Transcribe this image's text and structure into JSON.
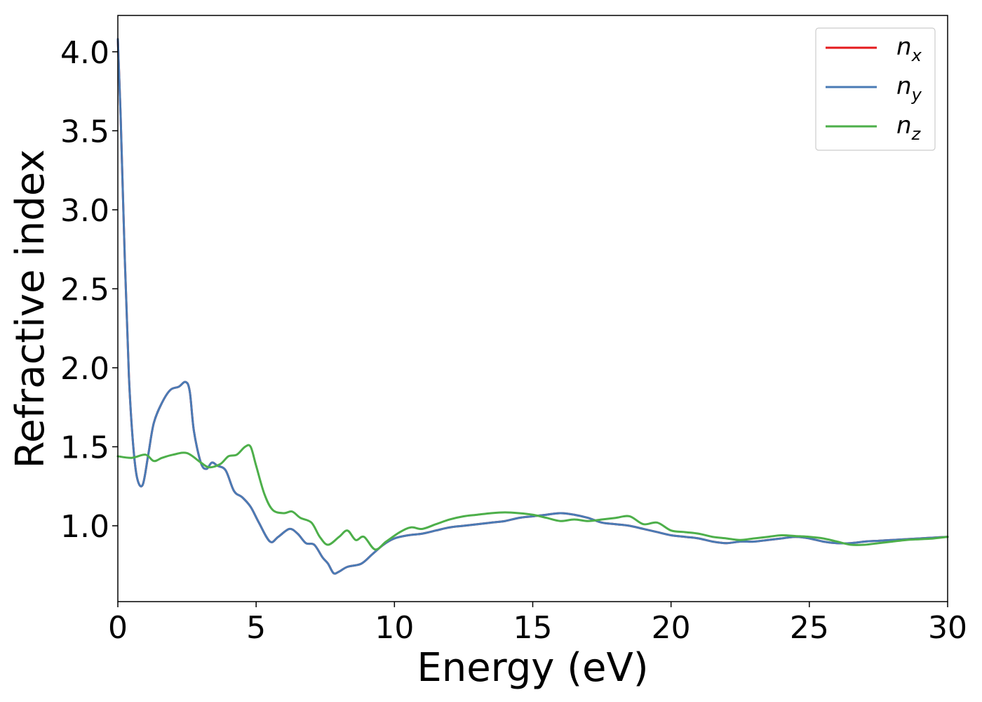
{
  "chart_data": {
    "type": "line",
    "xlabel": "Energy (eV)",
    "ylabel": "Refractive index",
    "xlim": [
      0,
      30
    ],
    "ylim": [
      0.52,
      4.23
    ],
    "xticks": [
      0,
      5,
      10,
      15,
      20,
      25,
      30
    ],
    "xtick_labels": [
      "0",
      "5",
      "10",
      "15",
      "20",
      "25",
      "30"
    ],
    "yticks": [
      1.0,
      1.5,
      2.0,
      2.5,
      3.0,
      3.5,
      4.0
    ],
    "ytick_labels": [
      "1.0",
      "1.5",
      "2.0",
      "2.5",
      "3.0",
      "3.5",
      "4.0"
    ],
    "grid": false,
    "legend_position": "top-right",
    "series": [
      {
        "name": "n_x",
        "label_base": "n",
        "label_sub": "x",
        "color": "#e41a1c",
        "x": [
          0,
          0.1,
          0.25,
          0.4,
          0.55,
          0.7,
          0.9,
          1.1,
          1.3,
          1.6,
          1.9,
          2.2,
          2.45,
          2.6,
          2.75,
          3.0,
          3.2,
          3.4,
          3.6,
          3.9,
          4.2,
          4.5,
          4.8,
          5.1,
          5.5,
          5.8,
          6.2,
          6.5,
          6.8,
          7.1,
          7.4,
          7.6,
          7.8,
          8.0,
          8.3,
          8.8,
          9.2,
          9.6,
          10.0,
          10.5,
          11.0,
          11.5,
          12.0,
          12.5,
          13.0,
          13.5,
          14.0,
          14.5,
          15.0,
          15.5,
          16.0,
          16.5,
          17.0,
          17.5,
          18.0,
          18.5,
          19.0,
          19.5,
          20.0,
          20.5,
          21.0,
          21.5,
          22.0,
          22.5,
          23.0,
          23.5,
          24.0,
          24.5,
          25.0,
          25.5,
          26.0,
          26.5,
          27.0,
          27.5,
          28.0,
          28.5,
          29.0,
          29.5,
          30.0
        ],
        "y": [
          4.08,
          3.6,
          2.7,
          1.95,
          1.52,
          1.3,
          1.26,
          1.45,
          1.65,
          1.78,
          1.86,
          1.88,
          1.91,
          1.85,
          1.6,
          1.4,
          1.36,
          1.4,
          1.38,
          1.35,
          1.22,
          1.18,
          1.12,
          1.02,
          0.9,
          0.93,
          0.98,
          0.95,
          0.89,
          0.88,
          0.8,
          0.76,
          0.7,
          0.71,
          0.74,
          0.76,
          0.82,
          0.88,
          0.92,
          0.94,
          0.95,
          0.97,
          0.99,
          1.0,
          1.01,
          1.02,
          1.03,
          1.05,
          1.06,
          1.07,
          1.08,
          1.07,
          1.05,
          1.02,
          1.01,
          1.0,
          0.98,
          0.96,
          0.94,
          0.93,
          0.92,
          0.9,
          0.89,
          0.9,
          0.9,
          0.91,
          0.92,
          0.93,
          0.92,
          0.9,
          0.89,
          0.89,
          0.9,
          0.905,
          0.91,
          0.915,
          0.92,
          0.925,
          0.93
        ]
      },
      {
        "name": "n_y",
        "label_base": "n",
        "label_sub": "y",
        "color": "#4a7bb5",
        "x": [
          0,
          0.1,
          0.25,
          0.4,
          0.55,
          0.7,
          0.9,
          1.1,
          1.3,
          1.6,
          1.9,
          2.2,
          2.45,
          2.6,
          2.75,
          3.0,
          3.2,
          3.4,
          3.6,
          3.9,
          4.2,
          4.5,
          4.8,
          5.1,
          5.5,
          5.8,
          6.2,
          6.5,
          6.8,
          7.1,
          7.4,
          7.6,
          7.8,
          8.0,
          8.3,
          8.8,
          9.2,
          9.6,
          10.0,
          10.5,
          11.0,
          11.5,
          12.0,
          12.5,
          13.0,
          13.5,
          14.0,
          14.5,
          15.0,
          15.5,
          16.0,
          16.5,
          17.0,
          17.5,
          18.0,
          18.5,
          19.0,
          19.5,
          20.0,
          20.5,
          21.0,
          21.5,
          22.0,
          22.5,
          23.0,
          23.5,
          24.0,
          24.5,
          25.0,
          25.5,
          26.0,
          26.5,
          27.0,
          27.5,
          28.0,
          28.5,
          29.0,
          29.5,
          30.0
        ],
        "y": [
          4.08,
          3.6,
          2.7,
          1.95,
          1.52,
          1.3,
          1.26,
          1.45,
          1.65,
          1.78,
          1.86,
          1.88,
          1.91,
          1.85,
          1.6,
          1.4,
          1.36,
          1.4,
          1.38,
          1.35,
          1.22,
          1.18,
          1.12,
          1.02,
          0.9,
          0.93,
          0.98,
          0.95,
          0.89,
          0.88,
          0.8,
          0.76,
          0.7,
          0.71,
          0.74,
          0.76,
          0.82,
          0.88,
          0.92,
          0.94,
          0.95,
          0.97,
          0.99,
          1.0,
          1.01,
          1.02,
          1.03,
          1.05,
          1.06,
          1.07,
          1.08,
          1.07,
          1.05,
          1.02,
          1.01,
          1.0,
          0.98,
          0.96,
          0.94,
          0.93,
          0.92,
          0.9,
          0.89,
          0.9,
          0.9,
          0.91,
          0.92,
          0.93,
          0.92,
          0.9,
          0.89,
          0.89,
          0.9,
          0.905,
          0.91,
          0.915,
          0.92,
          0.925,
          0.93
        ]
      },
      {
        "name": "n_z",
        "label_base": "n",
        "label_sub": "z",
        "color": "#4daf4a",
        "x": [
          0,
          0.5,
          1.0,
          1.3,
          1.6,
          2.0,
          2.5,
          3.0,
          3.3,
          3.7,
          4.0,
          4.3,
          4.6,
          4.8,
          5.0,
          5.3,
          5.6,
          6.0,
          6.3,
          6.6,
          7.0,
          7.3,
          7.6,
          8.0,
          8.3,
          8.6,
          8.9,
          9.3,
          9.7,
          10.2,
          10.6,
          11.0,
          11.5,
          12.0,
          12.5,
          13.0,
          13.5,
          14.0,
          14.5,
          15.0,
          15.5,
          16.0,
          16.5,
          17.0,
          17.5,
          18.0,
          18.5,
          19.0,
          19.5,
          20.0,
          20.5,
          21.0,
          21.5,
          22.0,
          22.5,
          23.0,
          23.5,
          24.0,
          24.5,
          25.0,
          25.5,
          26.0,
          26.5,
          27.0,
          27.5,
          28.0,
          28.5,
          29.0,
          29.5,
          30.0
        ],
        "y": [
          1.44,
          1.43,
          1.45,
          1.41,
          1.43,
          1.45,
          1.46,
          1.4,
          1.37,
          1.39,
          1.44,
          1.45,
          1.5,
          1.5,
          1.38,
          1.2,
          1.1,
          1.08,
          1.09,
          1.05,
          1.02,
          0.93,
          0.88,
          0.93,
          0.97,
          0.91,
          0.93,
          0.85,
          0.9,
          0.96,
          0.99,
          0.98,
          1.01,
          1.04,
          1.06,
          1.07,
          1.08,
          1.085,
          1.08,
          1.07,
          1.05,
          1.03,
          1.04,
          1.03,
          1.04,
          1.05,
          1.06,
          1.01,
          1.02,
          0.97,
          0.96,
          0.95,
          0.93,
          0.92,
          0.91,
          0.92,
          0.93,
          0.94,
          0.935,
          0.93,
          0.92,
          0.9,
          0.88,
          0.88,
          0.89,
          0.9,
          0.91,
          0.915,
          0.92,
          0.93
        ]
      }
    ]
  }
}
